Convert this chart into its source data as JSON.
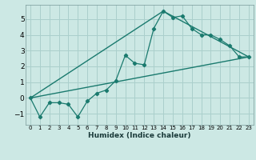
{
  "xlabel": "Humidex (Indice chaleur)",
  "ylabel": "",
  "background_color": "#cce8e4",
  "grid_color": "#aacfcc",
  "line_color": "#1a7a6e",
  "xlim": [
    -0.5,
    23.5
  ],
  "ylim": [
    -1.7,
    5.9
  ],
  "xticks": [
    0,
    1,
    2,
    3,
    4,
    5,
    6,
    7,
    8,
    9,
    10,
    11,
    12,
    13,
    14,
    15,
    16,
    17,
    18,
    19,
    20,
    21,
    22,
    23
  ],
  "yticks": [
    -1,
    0,
    1,
    2,
    3,
    4,
    5
  ],
  "line1_x": [
    0,
    1,
    2,
    3,
    4,
    5,
    6,
    7,
    8,
    9,
    10,
    11,
    12,
    13,
    14,
    15,
    16,
    17,
    18,
    19,
    20,
    21,
    22,
    23
  ],
  "line1_y": [
    0.0,
    -1.2,
    -0.3,
    -0.3,
    -0.4,
    -1.2,
    -0.2,
    0.3,
    0.5,
    1.1,
    2.7,
    2.2,
    2.1,
    4.4,
    5.5,
    5.1,
    5.2,
    4.4,
    4.0,
    4.0,
    3.7,
    3.3,
    2.6,
    2.6
  ],
  "line2_x": [
    0,
    23
  ],
  "line2_y": [
    0.0,
    2.6
  ],
  "line3_x": [
    0,
    14,
    23
  ],
  "line3_y": [
    0.0,
    5.5,
    2.6
  ]
}
